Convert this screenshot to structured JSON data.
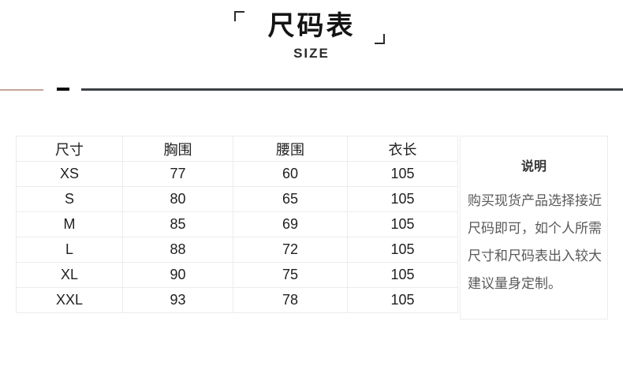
{
  "title": {
    "text": "尺码表",
    "subtitle": "SIZE"
  },
  "chart_data": {
    "type": "table",
    "title": "尺码表 (SIZE)",
    "columns": [
      "尺寸",
      "胸围",
      "腰围",
      "衣长"
    ],
    "rows": [
      [
        "XS",
        "77",
        "60",
        "105"
      ],
      [
        "S",
        "80",
        "65",
        "105"
      ],
      [
        "M",
        "85",
        "69",
        "105"
      ],
      [
        "L",
        "88",
        "72",
        "105"
      ],
      [
        "XL",
        "90",
        "75",
        "105"
      ],
      [
        "XXL",
        "93",
        "78",
        "105"
      ]
    ]
  },
  "notes": {
    "heading": "说明",
    "lines": [
      "购买现货产品选择接近",
      "尺码即可，如个人所需",
      "尺寸和尺码表出入较大",
      "建议量身定制。"
    ]
  },
  "colors": {
    "accent_rose": "#c7a49a",
    "accent_black": "#0b0b0b",
    "accent_dark_gray": "#3d4043",
    "table_border": "#ececec",
    "text_primary": "#1f1f1f",
    "note_text": "#595959"
  }
}
